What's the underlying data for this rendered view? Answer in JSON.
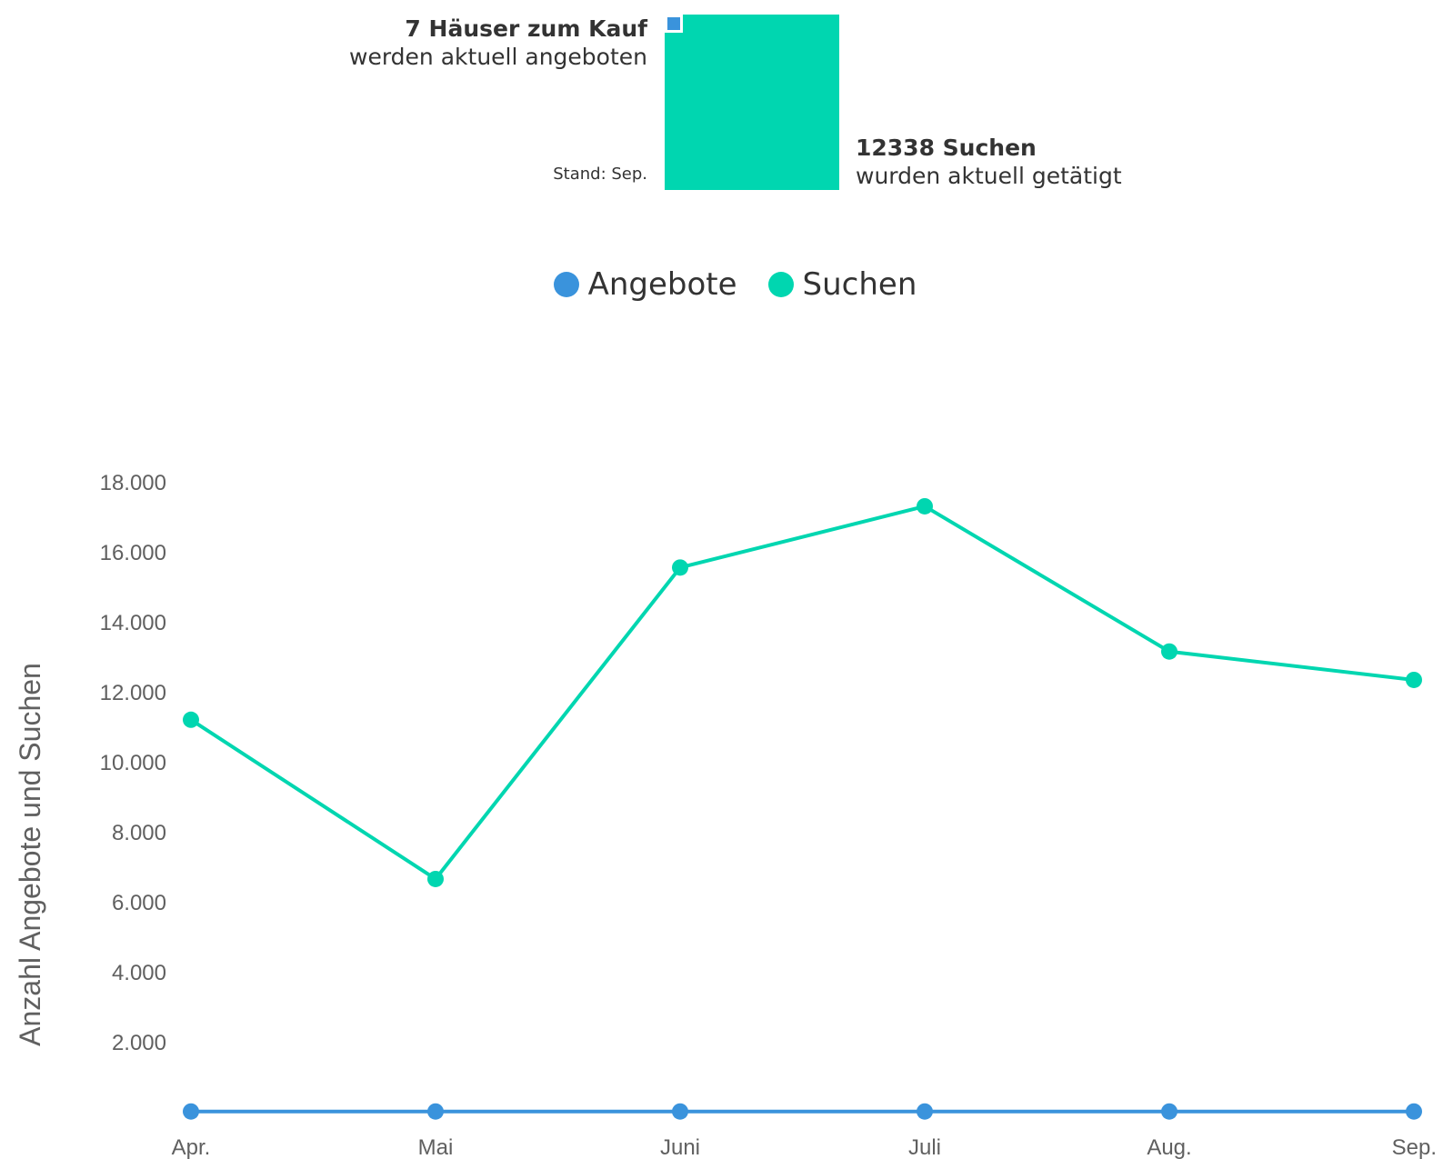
{
  "summary": {
    "offers_count_label": "7 Häuser zum Kauf",
    "offers_subtitle": "werden aktuell angeboten",
    "stand_label": "Stand: Sep.",
    "searches_count_label": "12338 Suchen",
    "searches_subtitle": "wurden aktuell getätigt",
    "offers_value": 7,
    "searches_value": 12338
  },
  "legend": {
    "items": [
      {
        "label": "Angebote",
        "color": "#3a93dc"
      },
      {
        "label": "Suchen",
        "color": "#00d6b0"
      }
    ]
  },
  "chart_data": {
    "type": "line",
    "categories": [
      "Apr.",
      "Mai",
      "Juni",
      "Juli",
      "Aug.",
      "Sep."
    ],
    "series": [
      {
        "name": "Angebote",
        "color": "#3a93dc",
        "values": [
          7,
          7,
          7,
          7,
          7,
          7
        ]
      },
      {
        "name": "Suchen",
        "color": "#00d6b0",
        "values": [
          11200,
          6650,
          15550,
          17300,
          13150,
          12338
        ]
      }
    ],
    "ylabel": "Anzahl Angebote und Suchen",
    "xlabel": "",
    "ylim": [
      0,
      18000
    ],
    "yticks": [
      2000,
      4000,
      6000,
      8000,
      10000,
      12000,
      14000,
      16000,
      18000
    ],
    "ytick_labels": [
      "2.000",
      "4.000",
      "6.000",
      "8.000",
      "10.000",
      "12.000",
      "14.000",
      "16.000",
      "18.000"
    ],
    "grid": false,
    "legend_position": "top-center"
  }
}
